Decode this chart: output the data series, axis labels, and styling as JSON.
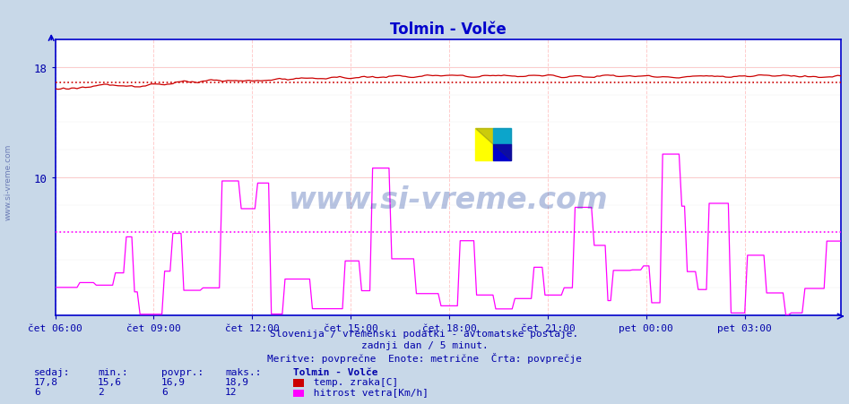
{
  "title": "Tolmin - Volče",
  "title_color": "#0000cc",
  "fig_bg_color": "#c8d8e8",
  "plot_bg_color": "#ffffff",
  "grid_color_v": "#ffcccc",
  "grid_color_h": "#ddcccc",
  "axis_color": "#0000cc",
  "tick_color": "#0000aa",
  "ylim": [
    0,
    20
  ],
  "yticks": [
    10,
    18
  ],
  "xticklabels": [
    "čet 06:00",
    "čet 09:00",
    "čet 12:00",
    "čet 15:00",
    "čet 18:00",
    "čet 21:00",
    "pet 00:00",
    "pet 03:00"
  ],
  "temp_color": "#cc0000",
  "wind_color": "#ff00ff",
  "temp_avg": 16.9,
  "wind_avg": 6.0,
  "temp_min": 15.6,
  "temp_max": 18.9,
  "wind_min": 2,
  "wind_max": 12,
  "temp_sedaj": "17,8",
  "wind_sedaj": "6",
  "temp_min_s": "15,6",
  "wind_min_s": "2",
  "temp_povpr_s": "16,9",
  "wind_povpr_s": "6",
  "temp_maks_s": "18,9",
  "wind_maks_s": "12",
  "footer1": "Slovenija / vremenski podatki - avtomatske postaje.",
  "footer2": "zadnji dan / 5 minut.",
  "footer3": "Meritve: povprečne  Enote: metrične  Črta: povprečje",
  "legend_title": "Tolmin - Volče",
  "label_temp": "temp. zraka[C]",
  "label_wind": "hitrost vetra[Km/h]",
  "watermark": "www.si-vreme.com",
  "n_points": 288
}
